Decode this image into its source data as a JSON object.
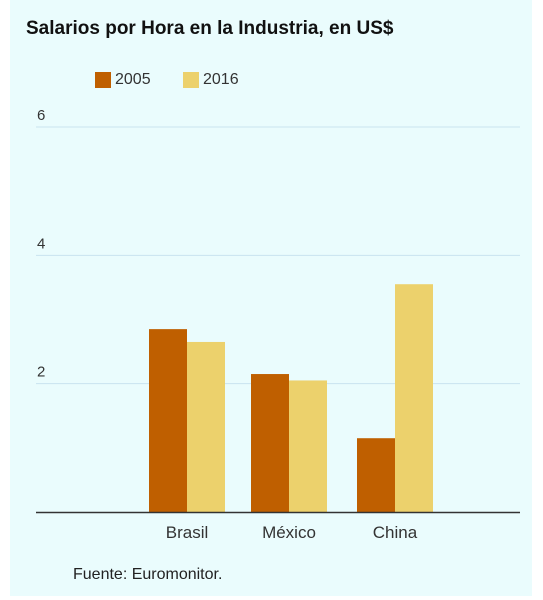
{
  "chart_data": {
    "type": "bar",
    "title": "Salarios por Hora en la Industria, en US$",
    "categories": [
      "Brasil",
      "México",
      "China"
    ],
    "series": [
      {
        "name": "2005",
        "values": [
          2.85,
          2.15,
          1.15
        ],
        "color": "#bf5f00"
      },
      {
        "name": "2016",
        "values": [
          2.65,
          2.05,
          3.55
        ],
        "color": "#ecd16c"
      }
    ],
    "yticks": [
      2,
      4,
      6
    ],
    "ylim": [
      0,
      6
    ],
    "xlabel": "",
    "ylabel": "",
    "grid": true,
    "legend": "top-left"
  },
  "source": "Fuente: Euromonitor."
}
